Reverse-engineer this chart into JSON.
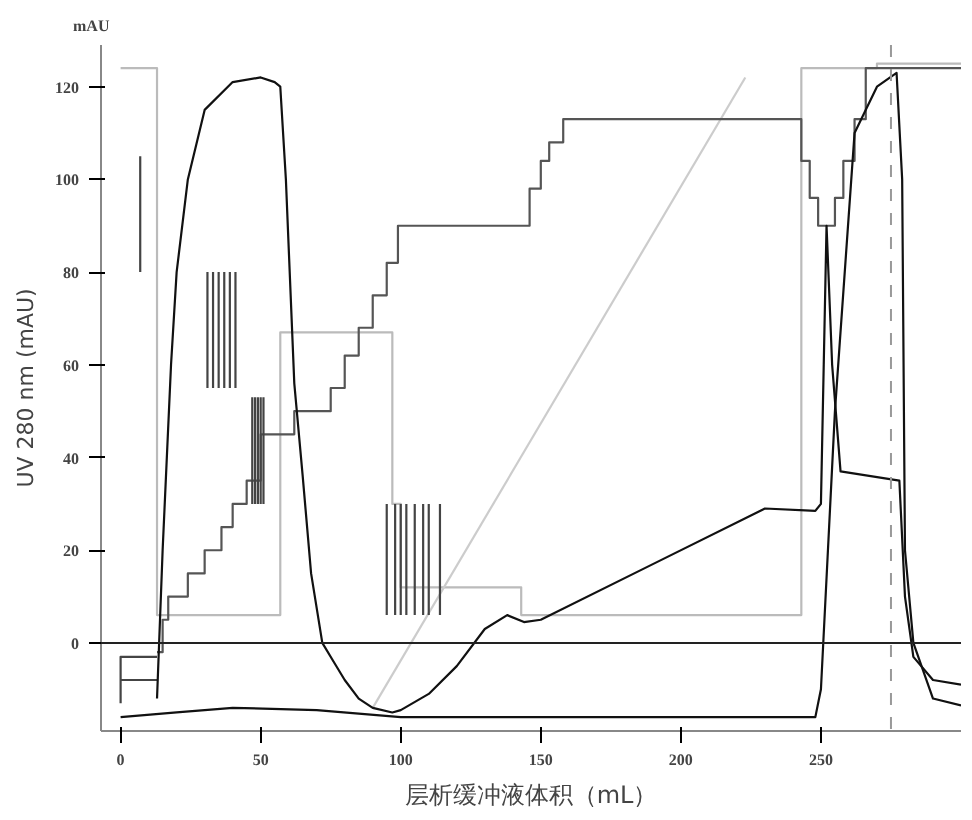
{
  "chart_data": {
    "type": "line",
    "xlabel": "层析缓冲液体积（mL）",
    "ylabel": "UV 280 nm (mAU)",
    "annotations": [
      "mAU"
    ],
    "xlim": [
      -7,
      300
    ],
    "ylim": [
      -19,
      129
    ],
    "xticks": [
      0,
      50,
      100,
      150,
      200,
      250
    ],
    "yticks": [
      0,
      20,
      40,
      60,
      80,
      100,
      120
    ],
    "grid": false,
    "marker": "none",
    "line_style": "solid",
    "ref_lines": [
      {
        "axis": "y",
        "value": 0,
        "color": "#222222",
        "line_style": "solid"
      },
      {
        "axis": "x",
        "value": 275,
        "color": "#999999",
        "line_style": "dashed"
      }
    ],
    "series": [
      {
        "color": "#bbbbbb",
        "x": [
          0,
          13,
          13,
          57,
          57,
          97,
          97,
          100,
          100,
          143,
          143,
          243,
          243,
          270,
          270,
          300
        ],
        "values": [
          124,
          124,
          6,
          6,
          67,
          67,
          30,
          30,
          12,
          12,
          6,
          6,
          124,
          124,
          125,
          125
        ]
      },
      {
        "color": "#cccccc",
        "x": [
          90,
          223
        ],
        "values": [
          -14,
          122
        ]
      },
      {
        "color": "#555555",
        "x": [
          13,
          15,
          15,
          17,
          17,
          24,
          24,
          30,
          30,
          36,
          36,
          40,
          40,
          45,
          45,
          50,
          50,
          62,
          62,
          75,
          75,
          80,
          80,
          85,
          85,
          90,
          90,
          95,
          95,
          99,
          99,
          146,
          146,
          150,
          150,
          153,
          153,
          158,
          158,
          243,
          243,
          246,
          246,
          249,
          249,
          255,
          255,
          258,
          258,
          262,
          262,
          266,
          266,
          300
        ],
        "values": [
          -2,
          -2,
          5,
          5,
          10,
          10,
          15,
          15,
          20,
          20,
          25,
          25,
          30,
          30,
          35,
          35,
          45,
          45,
          50,
          50,
          55,
          55,
          62,
          62,
          68,
          68,
          75,
          75,
          82,
          82,
          90,
          90,
          98,
          98,
          104,
          104,
          108,
          108,
          113,
          113,
          104,
          104,
          96,
          96,
          90,
          90,
          96,
          96,
          104,
          104,
          113,
          113,
          124,
          124
        ]
      },
      {
        "color": "#444444",
        "x": [
          0,
          0,
          13,
          null,
          0,
          13,
          null,
          7,
          7,
          null,
          31,
          31,
          null,
          33,
          33,
          null,
          35,
          35,
          null,
          37,
          37,
          null,
          39,
          39,
          null,
          41,
          41,
          null,
          47,
          47,
          null,
          48,
          48,
          null,
          49,
          49,
          null,
          50,
          50,
          null,
          51,
          51,
          null,
          95,
          95,
          null,
          98,
          98,
          null,
          100,
          100,
          null,
          102,
          102,
          null,
          105,
          105,
          null,
          108,
          108,
          null,
          110,
          110,
          null,
          114,
          114
        ],
        "values": [
          -13,
          -3,
          -3,
          null,
          -8,
          -8,
          null,
          80,
          105,
          null,
          55,
          80,
          null,
          55,
          80,
          null,
          55,
          80,
          null,
          55,
          80,
          null,
          55,
          80,
          null,
          55,
          80,
          null,
          30,
          53,
          null,
          30,
          53,
          null,
          30,
          53,
          null,
          30,
          53,
          null,
          30,
          53,
          null,
          6,
          30,
          null,
          6,
          30,
          null,
          6,
          30,
          null,
          6,
          30,
          null,
          6,
          30,
          null,
          6,
          30,
          null,
          6,
          30,
          null,
          6,
          30
        ]
      },
      {
        "color": "#111111",
        "x": [
          13,
          15,
          18,
          20,
          24,
          30,
          40,
          50,
          55,
          57,
          59,
          62,
          65,
          68,
          72,
          76,
          80,
          85,
          90,
          97,
          100,
          110,
          120,
          130,
          138,
          144,
          150,
          190,
          230,
          248,
          250,
          252,
          254,
          257,
          278,
          280,
          283,
          290,
          300
        ],
        "values": [
          -12,
          20,
          60,
          80,
          100,
          115,
          121,
          122,
          121,
          120,
          100,
          56,
          36,
          15,
          0,
          -4,
          -8,
          -12,
          -14,
          -15,
          -14.5,
          -11,
          -5,
          3,
          6,
          4.5,
          5,
          17,
          29,
          28.5,
          30,
          90,
          60,
          37,
          35,
          10,
          -3,
          -8,
          -9
        ]
      },
      {
        "color": "#111111",
        "x": [
          0,
          20,
          40,
          70,
          100,
          150,
          248,
          250,
          255,
          262,
          270,
          277,
          279,
          280,
          283,
          290,
          300
        ],
        "values": [
          -16,
          -15,
          -14,
          -14.5,
          -16,
          -16,
          -16,
          -10,
          50,
          110,
          120,
          123,
          100,
          20,
          0,
          -12,
          -13.5
        ]
      }
    ]
  }
}
